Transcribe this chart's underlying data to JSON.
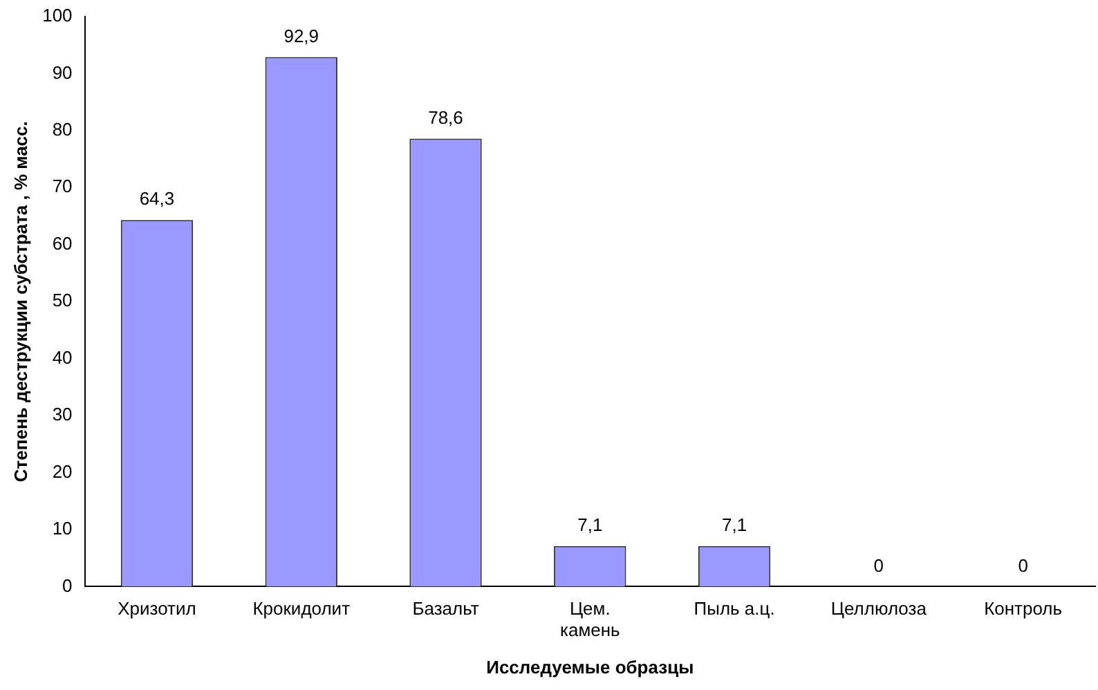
{
  "chart_data": {
    "type": "bar",
    "xlabel": "Исследуемые образцы",
    "ylabel": "Степень деструкции субстрата , % масс.",
    "categories": [
      "Хризотил",
      "Крокидолит",
      "Базальт",
      "Цем. камень",
      "Пыль а.ц.",
      "Целлюлоза",
      "Контроль"
    ],
    "values": [
      64.3,
      92.9,
      78.6,
      7.1,
      7.1,
      0,
      0
    ],
    "value_labels": [
      "64,3",
      "92,9",
      "78,6",
      "7,1",
      "7,1",
      "0",
      "0"
    ],
    "color": "#9999ff",
    "ylim": [
      0,
      100
    ],
    "yticks": [
      0,
      10,
      20,
      30,
      40,
      50,
      60,
      70,
      80,
      90,
      100
    ],
    "grid": false,
    "legend": false
  }
}
